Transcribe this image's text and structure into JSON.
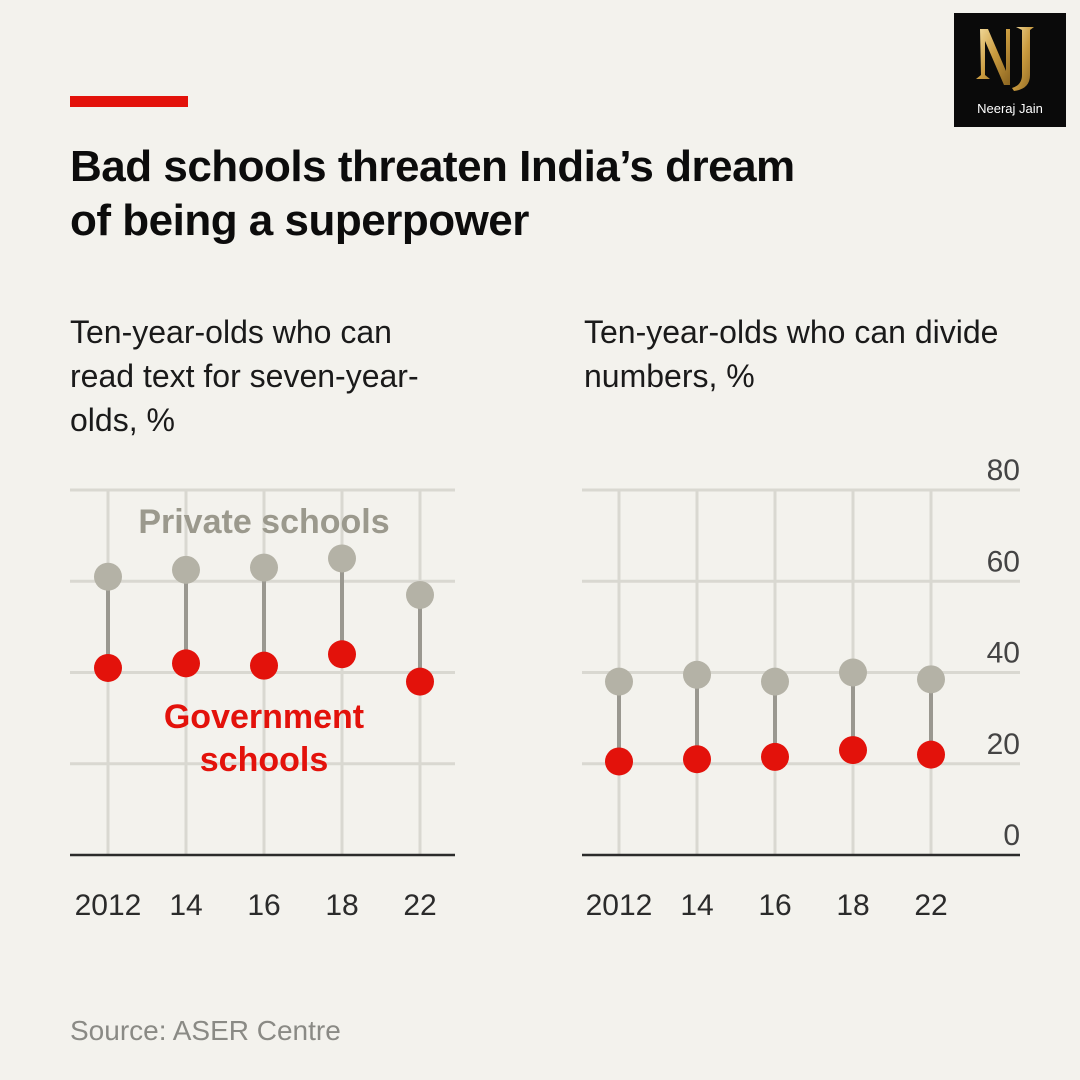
{
  "header": {
    "title": "Bad schools threaten India’s dream of being a superpower",
    "accent_color": "#e3120b"
  },
  "logo": {
    "monogram": "NJ",
    "name": "Neeraj Jain"
  },
  "source": "Source: ASER Centre",
  "colors": {
    "private": "#b4b2a6",
    "government": "#e3120b",
    "grid": "#d9d8d1",
    "axis": "#2b2b2b"
  },
  "chart_data": [
    {
      "type": "dot-plot",
      "title": "Ten-year-olds who can read text for seven-year-olds, %",
      "categories": [
        "2012",
        "14",
        "16",
        "18",
        "22"
      ],
      "ylim": [
        0,
        80
      ],
      "yticks": [],
      "grid": true,
      "series": [
        {
          "name": "Private schools",
          "values": [
            61,
            62.5,
            63,
            65,
            57
          ]
        },
        {
          "name": "Government schools",
          "values": [
            41,
            42,
            41.5,
            44,
            38
          ]
        }
      ],
      "annotations": [
        "Private schools",
        "Government",
        "schools"
      ]
    },
    {
      "type": "dot-plot",
      "title": "Ten-year-olds who can divide numbers, %",
      "categories": [
        "2012",
        "14",
        "16",
        "18",
        "22"
      ],
      "ylim": [
        0,
        80
      ],
      "yticks": [
        "0",
        "20",
        "40",
        "60",
        "80"
      ],
      "grid": true,
      "series": [
        {
          "name": "Private schools",
          "values": [
            38,
            39.5,
            38,
            40,
            38.5
          ]
        },
        {
          "name": "Government schools",
          "values": [
            20.5,
            21,
            21.5,
            23,
            22
          ]
        }
      ]
    }
  ]
}
